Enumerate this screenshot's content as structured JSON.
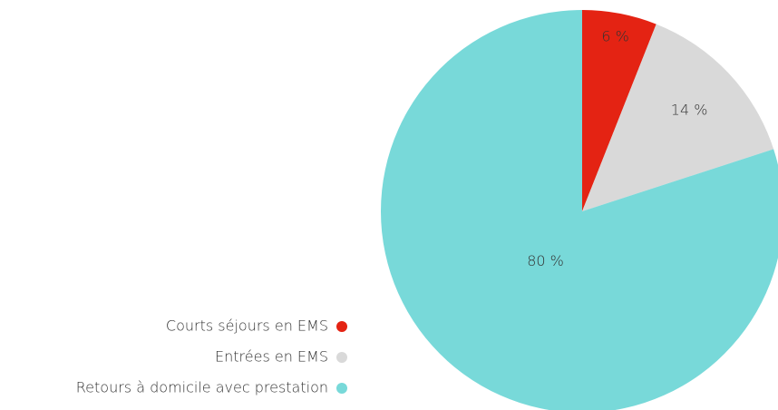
{
  "chart_data": {
    "type": "pie",
    "categories": [
      "Courts séjours en EMS",
      "Entrées en EMS",
      "Retours à domicile avec prestation"
    ],
    "values": [
      6,
      14,
      80
    ],
    "value_labels": [
      "6 %",
      "14 %",
      "80 %"
    ],
    "colors": [
      "#e42313",
      "#d9d9d9",
      "#78d9d9"
    ],
    "legend": "left"
  }
}
